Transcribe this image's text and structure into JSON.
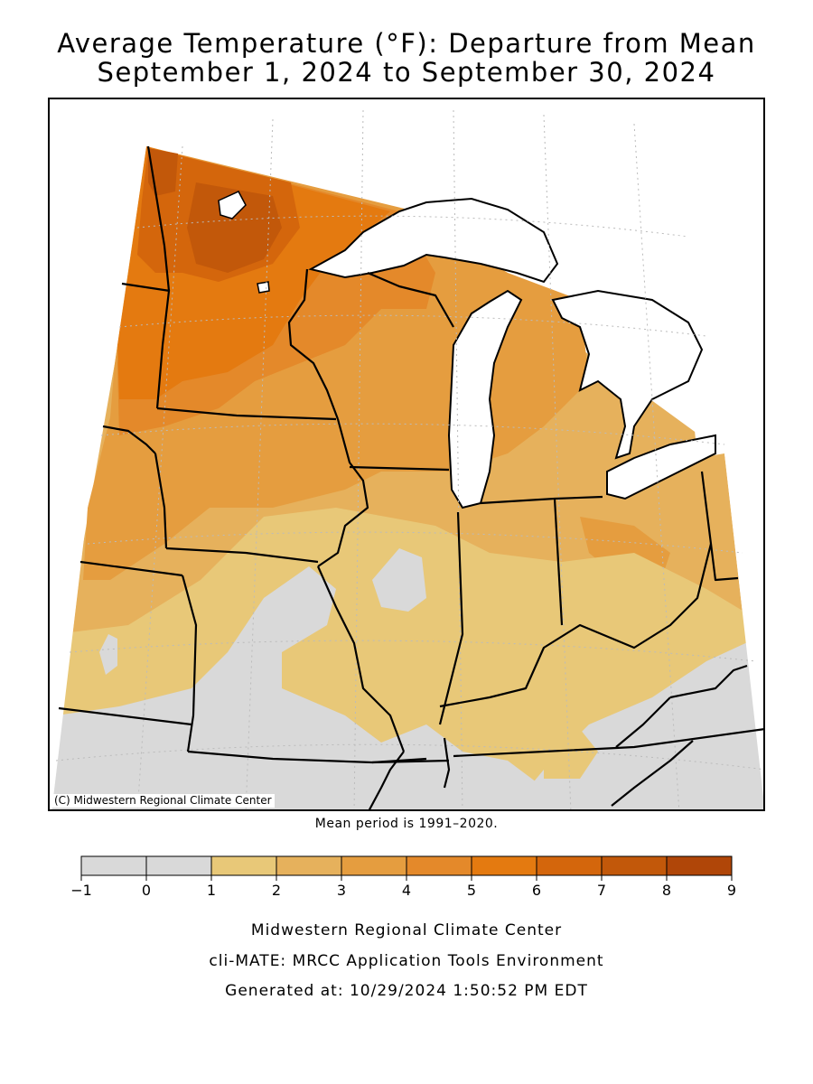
{
  "title_line1": "Average Temperature (°F): Departure from Mean",
  "title_line2": "September 1, 2024 to September 30, 2024",
  "copyright": "(C) Midwestern Regional Climate Center",
  "mean_period": "Mean period is 1991–2020.",
  "legend": {
    "ticks": [
      "−1",
      "0",
      "1",
      "2",
      "3",
      "4",
      "5",
      "6",
      "7",
      "8",
      "9"
    ],
    "colors": [
      "#d9d9d9",
      "#d9d9d9",
      "#e8c878",
      "#e6b15c",
      "#e59d3f",
      "#e4892a",
      "#e47a10",
      "#d4660c",
      "#c2580a",
      "#b04608"
    ]
  },
  "footer": {
    "line1": "Midwestern Regional Climate Center",
    "line2": "cli-MATE: MRCC Application Tools Environment",
    "line3": "Generated at: 10/29/2024 1:50:52 PM EDT"
  },
  "colors": {
    "water": "#ffffff",
    "outline": "#000000",
    "grid": "#bbbbbb"
  }
}
